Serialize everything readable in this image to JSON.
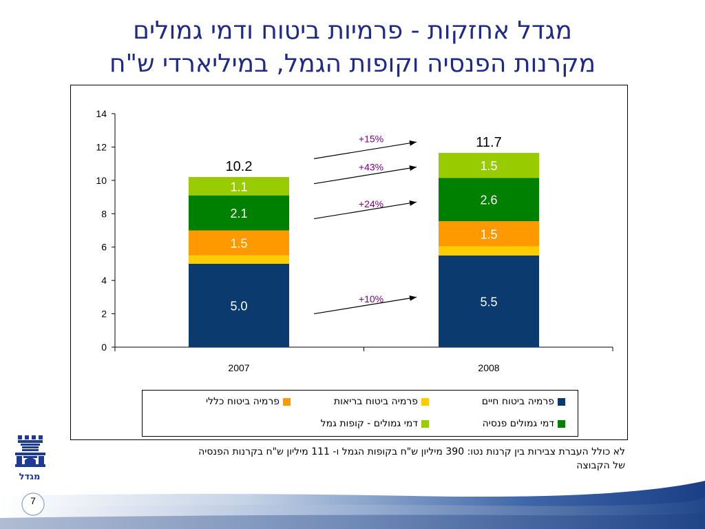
{
  "slide": {
    "title_line1": "מגדל אחזקות - פרמיות ביטוח ודמי גמולים",
    "title_line2": "מקרנות הפנסיה וקופות הגמל, במיליארדי ש\"ח",
    "footnote_line1": "לא כולל העברת צבירות בין קרנות נטו: 390 מיליון ש\"ח בקופות הגמל ו- 111 מיליון ש\"ח בקרנות הפנסיה",
    "footnote_line2": "של הקבוצה",
    "page_number": "7",
    "logo_text": "מגדל",
    "brand_color": "#1f2a86"
  },
  "chart_data": {
    "type": "bar",
    "stacked": true,
    "categories": [
      "2007",
      "2008"
    ],
    "ylim": [
      0,
      14
    ],
    "yticks": [
      "0",
      "2",
      "4",
      "6",
      "8",
      "10",
      "12",
      "14"
    ],
    "xlabel": "",
    "ylabel": "",
    "series": [
      {
        "name": "פרמיה ביטוח חיים",
        "color": "#0a3a6e",
        "values": [
          5.0,
          5.5
        ],
        "labels": [
          "5.0",
          "5.5"
        ],
        "label_color": "#ffffff"
      },
      {
        "name": "פרמיה ביטוח בריאות",
        "color": "#ffcc00",
        "values": [
          0.5,
          0.55
        ],
        "labels": [
          "",
          ""
        ],
        "label_color": "#000000"
      },
      {
        "name": "פרמיה ביטוח כללי",
        "color": "#ff9900",
        "values": [
          1.5,
          1.5
        ],
        "labels": [
          "1.5",
          "1.5"
        ],
        "label_color": "#ffffff"
      },
      {
        "name": "דמי גמולים פנסיה",
        "color": "#008000",
        "values": [
          2.1,
          2.6
        ],
        "labels": [
          "2.1",
          "2.6"
        ],
        "label_color": "#ffffff"
      },
      {
        "name": "דמי גמולים - קופות גמל",
        "color": "#99cc00",
        "values": [
          1.1,
          1.5
        ],
        "labels": [
          "1.1",
          "1.5"
        ],
        "label_color": "#ffffff"
      }
    ],
    "totals": [
      "10.2",
      "11.7"
    ],
    "growth_annotations": [
      {
        "label": "+15%",
        "from_y": 11.3,
        "to_y": 12.3,
        "label_y": 12.5
      },
      {
        "label": "+43%",
        "from_y": 9.8,
        "to_y": 10.8,
        "label_y": 10.8
      },
      {
        "label": "+24%",
        "from_y": 7.7,
        "to_y": 8.7,
        "label_y": 8.6
      },
      {
        "label": "+10%",
        "from_y": 2.0,
        "to_y": 3.0,
        "label_y": 2.9
      }
    ],
    "annotation_color": "#800080",
    "legend_position": "bottom"
  }
}
